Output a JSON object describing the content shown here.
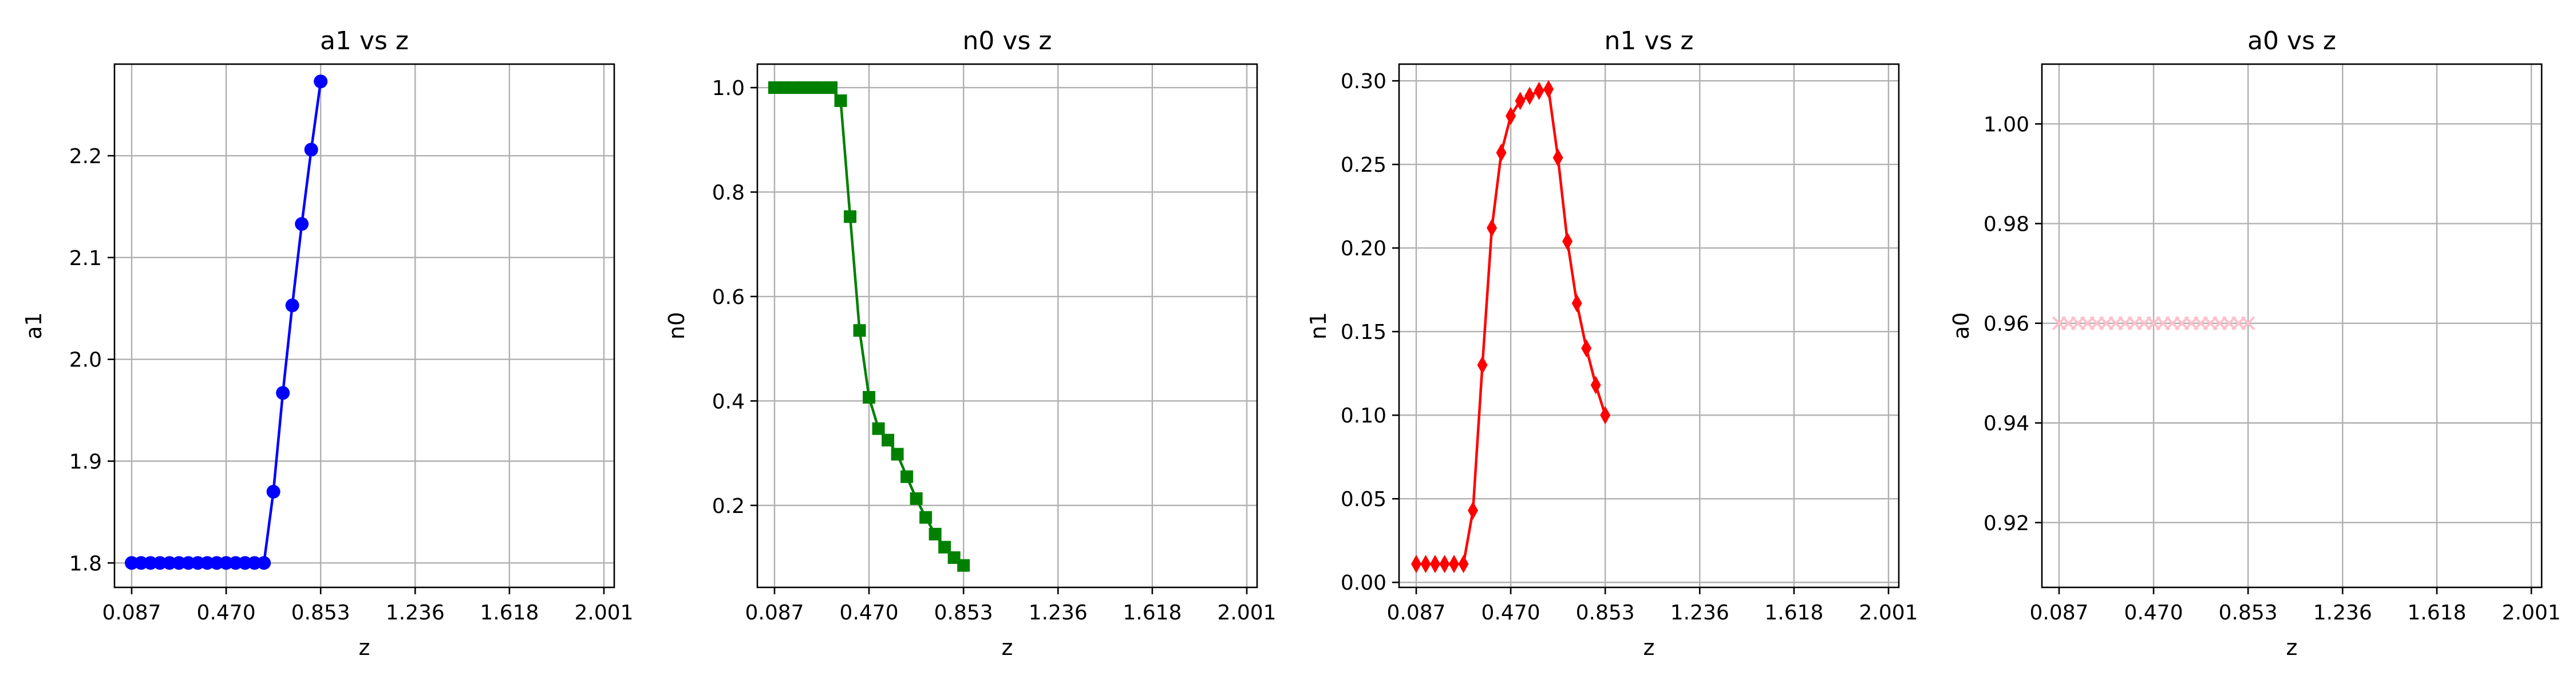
{
  "chart_data": [
    {
      "type": "line",
      "title": "a1 vs z",
      "xlabel": "z",
      "ylabel": "a1",
      "xticks": [
        "0.087",
        "0.470",
        "0.853",
        "1.236",
        "1.618",
        "2.001"
      ],
      "xtick_values": [
        0.087,
        0.47,
        0.853,
        1.236,
        1.618,
        2.001
      ],
      "yticks": [
        "1.8",
        "1.9",
        "2.0",
        "2.1",
        "2.2"
      ],
      "ytick_values": [
        1.8,
        1.9,
        2.0,
        2.1,
        2.2
      ],
      "xlim": [
        0.0,
        2.1
      ],
      "ylim": [
        1.776,
        2.29
      ],
      "grid": true,
      "series": [
        {
          "color": "#0000ff",
          "marker": "circle",
          "x": [
            0.087,
            0.1253,
            0.1636,
            0.2019,
            0.2402,
            0.2785,
            0.3168,
            0.3551,
            0.3934,
            0.4317,
            0.47,
            0.5083,
            0.5466,
            0.5849,
            0.6232,
            0.6615,
            0.6998,
            0.7381,
            0.7764,
            0.8147,
            0.853
          ],
          "y": [
            1.8,
            1.8,
            1.8,
            1.8,
            1.8,
            1.8,
            1.8,
            1.8,
            1.8,
            1.8,
            1.8,
            1.8,
            1.8,
            1.8,
            1.8,
            1.87,
            1.967,
            2.053,
            2.133,
            2.206,
            2.273
          ]
        }
      ]
    },
    {
      "type": "line",
      "title": "n0 vs z",
      "xlabel": "z",
      "ylabel": "n0",
      "xticks": [
        "0.087",
        "0.470",
        "0.853",
        "1.236",
        "1.618",
        "2.001"
      ],
      "xtick_values": [
        0.087,
        0.47,
        0.853,
        1.236,
        1.618,
        2.001
      ],
      "yticks": [
        "0.2",
        "0.4",
        "0.6",
        "0.8",
        "1.0"
      ],
      "ytick_values": [
        0.2,
        0.4,
        0.6,
        0.8,
        1.0
      ],
      "xlim": [
        0.0,
        2.1
      ],
      "ylim": [
        0.043,
        1.045
      ],
      "grid": true,
      "series": [
        {
          "color": "#008000",
          "marker": "square",
          "x": [
            0.087,
            0.1253,
            0.1636,
            0.2019,
            0.2402,
            0.2785,
            0.3168,
            0.3551,
            0.3934,
            0.4317,
            0.47,
            0.5083,
            0.5466,
            0.5849,
            0.6232,
            0.6615,
            0.6998,
            0.7381,
            0.7764,
            0.8147,
            0.853
          ],
          "y": [
            1.0,
            1.0,
            1.0,
            1.0,
            1.0,
            1.0,
            1.0,
            0.975,
            0.753,
            0.535,
            0.407,
            0.347,
            0.325,
            0.298,
            0.255,
            0.213,
            0.177,
            0.145,
            0.12,
            0.1,
            0.085
          ]
        }
      ]
    },
    {
      "type": "line",
      "title": "n1 vs z",
      "xlabel": "z",
      "ylabel": "n1",
      "xticks": [
        "0.087",
        "0.470",
        "0.853",
        "1.236",
        "1.618",
        "2.001"
      ],
      "xtick_values": [
        0.087,
        0.47,
        0.853,
        1.236,
        1.618,
        2.001
      ],
      "yticks": [
        "0.00",
        "0.05",
        "0.10",
        "0.15",
        "0.20",
        "0.25",
        "0.30"
      ],
      "ytick_values": [
        0.0,
        0.05,
        0.1,
        0.15,
        0.2,
        0.25,
        0.3
      ],
      "xlim": [
        0.0,
        2.1
      ],
      "ylim": [
        -0.003,
        0.31
      ],
      "grid": true,
      "series": [
        {
          "color": "#ff0000",
          "marker": "thin-diamond",
          "x": [
            0.087,
            0.1253,
            0.1636,
            0.2019,
            0.2402,
            0.2785,
            0.3168,
            0.3551,
            0.3934,
            0.4317,
            0.47,
            0.5083,
            0.5466,
            0.5849,
            0.6232,
            0.6615,
            0.6998,
            0.7381,
            0.7764,
            0.8147,
            0.853
          ],
          "y": [
            0.011,
            0.011,
            0.011,
            0.011,
            0.011,
            0.011,
            0.043,
            0.13,
            0.212,
            0.257,
            0.279,
            0.288,
            0.291,
            0.294,
            0.295,
            0.254,
            0.204,
            0.167,
            0.14,
            0.118,
            0.1
          ]
        }
      ]
    },
    {
      "type": "line",
      "title": "a0 vs z",
      "xlabel": "z",
      "ylabel": "a0",
      "xticks": [
        "0.087",
        "0.470",
        "0.853",
        "1.236",
        "1.618",
        "2.001"
      ],
      "xtick_values": [
        0.087,
        0.47,
        0.853,
        1.236,
        1.618,
        2.001
      ],
      "yticks": [
        "0.92",
        "0.94",
        "0.96",
        "0.98",
        "1.00"
      ],
      "ytick_values": [
        0.92,
        0.94,
        0.96,
        0.98,
        1.0
      ],
      "xlim": [
        0.0,
        2.1
      ],
      "ylim": [
        0.907,
        1.012
      ],
      "grid": true,
      "series": [
        {
          "color": "#ffc0cb",
          "marker": "x",
          "x": [
            0.087,
            0.1253,
            0.1636,
            0.2019,
            0.2402,
            0.2785,
            0.3168,
            0.3551,
            0.3934,
            0.4317,
            0.47,
            0.5083,
            0.5466,
            0.5849,
            0.6232,
            0.6615,
            0.6998,
            0.7381,
            0.7764,
            0.8147,
            0.853
          ],
          "y": [
            0.96,
            0.96,
            0.96,
            0.96,
            0.96,
            0.96,
            0.96,
            0.96,
            0.96,
            0.96,
            0.96,
            0.96,
            0.96,
            0.96,
            0.96,
            0.96,
            0.96,
            0.96,
            0.96,
            0.96,
            0.96
          ]
        }
      ]
    }
  ]
}
